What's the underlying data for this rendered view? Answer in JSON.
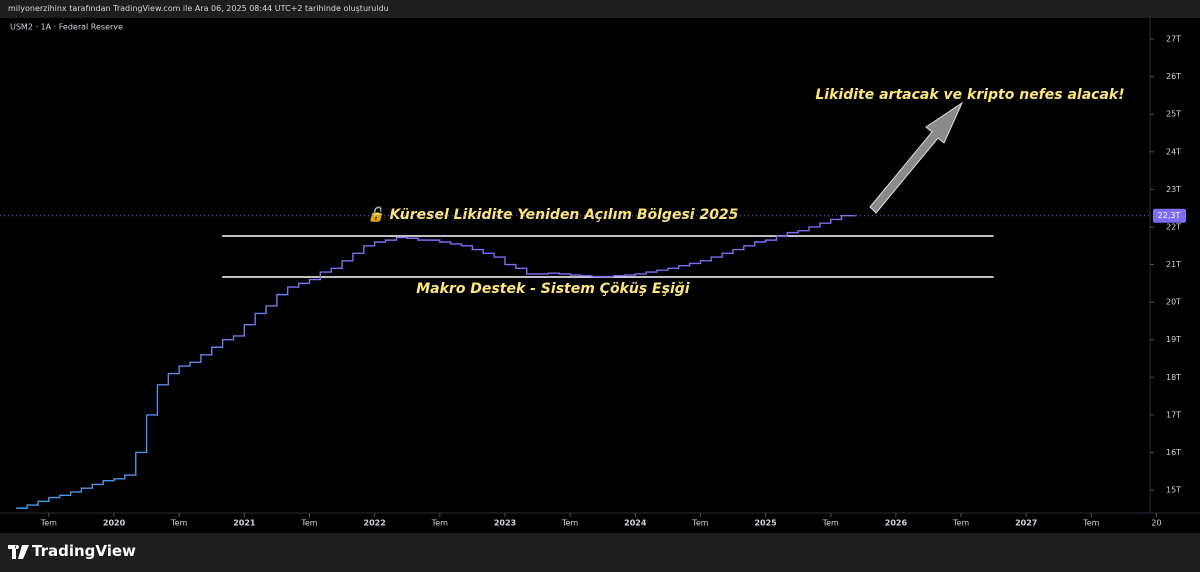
{
  "chart_data": {
    "type": "line",
    "header": "milyonerzihinx tarafından TradingView.com ile Ara 06, 2025 08:44 UTC+2 tarihinde oluşturuldu",
    "symbol": "USM2 · 1A · Federal Reserve",
    "brand": "TradingView",
    "x": [
      2019.25,
      2019.333,
      2019.417,
      2019.5,
      2019.583,
      2019.667,
      2019.75,
      2019.833,
      2019.917,
      2020,
      2020.083,
      2020.167,
      2020.25,
      2020.333,
      2020.417,
      2020.5,
      2020.583,
      2020.667,
      2020.75,
      2020.833,
      2020.917,
      2021,
      2021.083,
      2021.167,
      2021.25,
      2021.333,
      2021.417,
      2021.5,
      2021.583,
      2021.667,
      2021.75,
      2021.833,
      2021.917,
      2022,
      2022.083,
      2022.167,
      2022.25,
      2022.333,
      2022.417,
      2022.5,
      2022.583,
      2022.667,
      2022.75,
      2022.833,
      2022.917,
      2023,
      2023.083,
      2023.167,
      2023.25,
      2023.333,
      2023.417,
      2023.5,
      2023.583,
      2023.667,
      2023.75,
      2023.833,
      2023.917,
      2024,
      2024.083,
      2024.167,
      2024.25,
      2024.333,
      2024.417,
      2024.5,
      2024.583,
      2024.667,
      2024.75,
      2024.833,
      2024.917,
      2025,
      2025.083,
      2025.167,
      2025.25,
      2025.333,
      2025.417,
      2025.5,
      2025.583
    ],
    "series": [
      {
        "name": "USM2",
        "color": "#7e6cf2",
        "values": [
          14.52,
          14.6,
          14.7,
          14.8,
          14.86,
          14.95,
          15.05,
          15.15,
          15.25,
          15.3,
          15.4,
          16.0,
          17.0,
          17.8,
          18.1,
          18.3,
          18.4,
          18.6,
          18.8,
          19.0,
          19.1,
          19.4,
          19.7,
          19.9,
          20.2,
          20.4,
          20.5,
          20.6,
          20.8,
          20.9,
          21.1,
          21.3,
          21.5,
          21.6,
          21.65,
          21.72,
          21.7,
          21.65,
          21.65,
          21.6,
          21.55,
          21.5,
          21.4,
          21.3,
          21.2,
          21.0,
          20.9,
          20.75,
          20.75,
          20.77,
          20.75,
          20.72,
          20.7,
          20.68,
          20.68,
          20.7,
          20.72,
          20.75,
          20.8,
          20.85,
          20.9,
          20.97,
          21.03,
          21.1,
          21.2,
          21.3,
          21.4,
          21.5,
          21.6,
          21.65,
          21.75,
          21.85,
          21.9,
          22.0,
          22.1,
          22.2,
          22.3
        ]
      }
    ],
    "last_value": 22.3,
    "last_label": "22,3T",
    "xlim": [
      2019.125,
      2027.95
    ],
    "ylim": [
      14.39,
      27.56
    ],
    "yticks": [
      {
        "value": 15,
        "label": "15T"
      },
      {
        "value": 16,
        "label": "16T"
      },
      {
        "value": 17,
        "label": "17T"
      },
      {
        "value": 18,
        "label": "18T"
      },
      {
        "value": 19,
        "label": "19T"
      },
      {
        "value": 20,
        "label": "20T"
      },
      {
        "value": 21,
        "label": "21T"
      },
      {
        "value": 22,
        "label": "22T"
      },
      {
        "value": 23,
        "label": "23T"
      },
      {
        "value": 24,
        "label": "24T"
      },
      {
        "value": 25,
        "label": "25T"
      },
      {
        "value": 26,
        "label": "26T"
      },
      {
        "value": 27,
        "label": "27T"
      }
    ],
    "xticks": [
      {
        "value": 2019.5,
        "label": "Tem"
      },
      2020,
      {
        "value": 2020.5,
        "label": "Tem"
      },
      2021,
      {
        "value": 2021.5,
        "label": "Tem"
      },
      2022,
      {
        "value": 2022.5,
        "label": "Tem"
      },
      2023,
      {
        "value": 2023.5,
        "label": "Tem"
      },
      2024,
      {
        "value": 2024.5,
        "label": "Tem"
      },
      2025,
      {
        "value": 2025.5,
        "label": "Tem"
      },
      2026,
      {
        "value": 2026.5,
        "label": "Tem"
      },
      2027,
      {
        "value": 2027.5,
        "label": "Tem"
      },
      {
        "value": 2028,
        "label": "20"
      }
    ],
    "levels": [
      {
        "value": 21.76,
        "x_range": [
          2020.83,
          2026.75
        ],
        "label": "🔓 Küresel Likidite Yeniden Açılım Bölgesi 2025"
      },
      {
        "value": 20.67,
        "x_range": [
          2020.83,
          2026.75
        ],
        "label": "Makro Destek - Sistem Çöküş Eşiği"
      }
    ],
    "annotation": "Likidite artacak ve kripto nefes alacak!"
  }
}
